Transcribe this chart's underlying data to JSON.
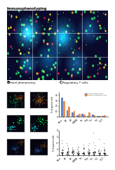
{
  "title_top": "Immunophenotyping",
  "title_left": "B  Panel phenometry",
  "title_right": "C  Regulatory T cells",
  "bg_color": "#ffffff",
  "top_panel_bg": "#0a0a2a",
  "bar_categories": [
    "Naive",
    "CM",
    "EM",
    "TEMRA",
    "Tfh",
    "Treg",
    "Th1",
    "Th2",
    "Th17"
  ],
  "bar_values_blue": [
    35,
    12,
    8,
    3,
    6,
    2,
    4,
    1.5,
    2
  ],
  "bar_values_orange": [
    28,
    18,
    10,
    5,
    4,
    8,
    3,
    2,
    3
  ],
  "legend_blue": "Follicular CD4+T cells",
  "legend_orange": "Extrafollicular CD4+T cells",
  "color_blue": "#4472c4",
  "color_orange": "#ed7d31",
  "scatter_categories": [
    "Naive",
    "CM",
    "EM",
    "TEMRA",
    "Tfh",
    "Treg",
    "Th1",
    "Th2",
    "Th17"
  ],
  "ylabel_top": "% of parent cells",
  "ylabel_bottom": "% of parent cells",
  "micro_grid_rows": 3,
  "micro_grid_cols": 4,
  "flow_rows": 3,
  "flow_cols": 3
}
